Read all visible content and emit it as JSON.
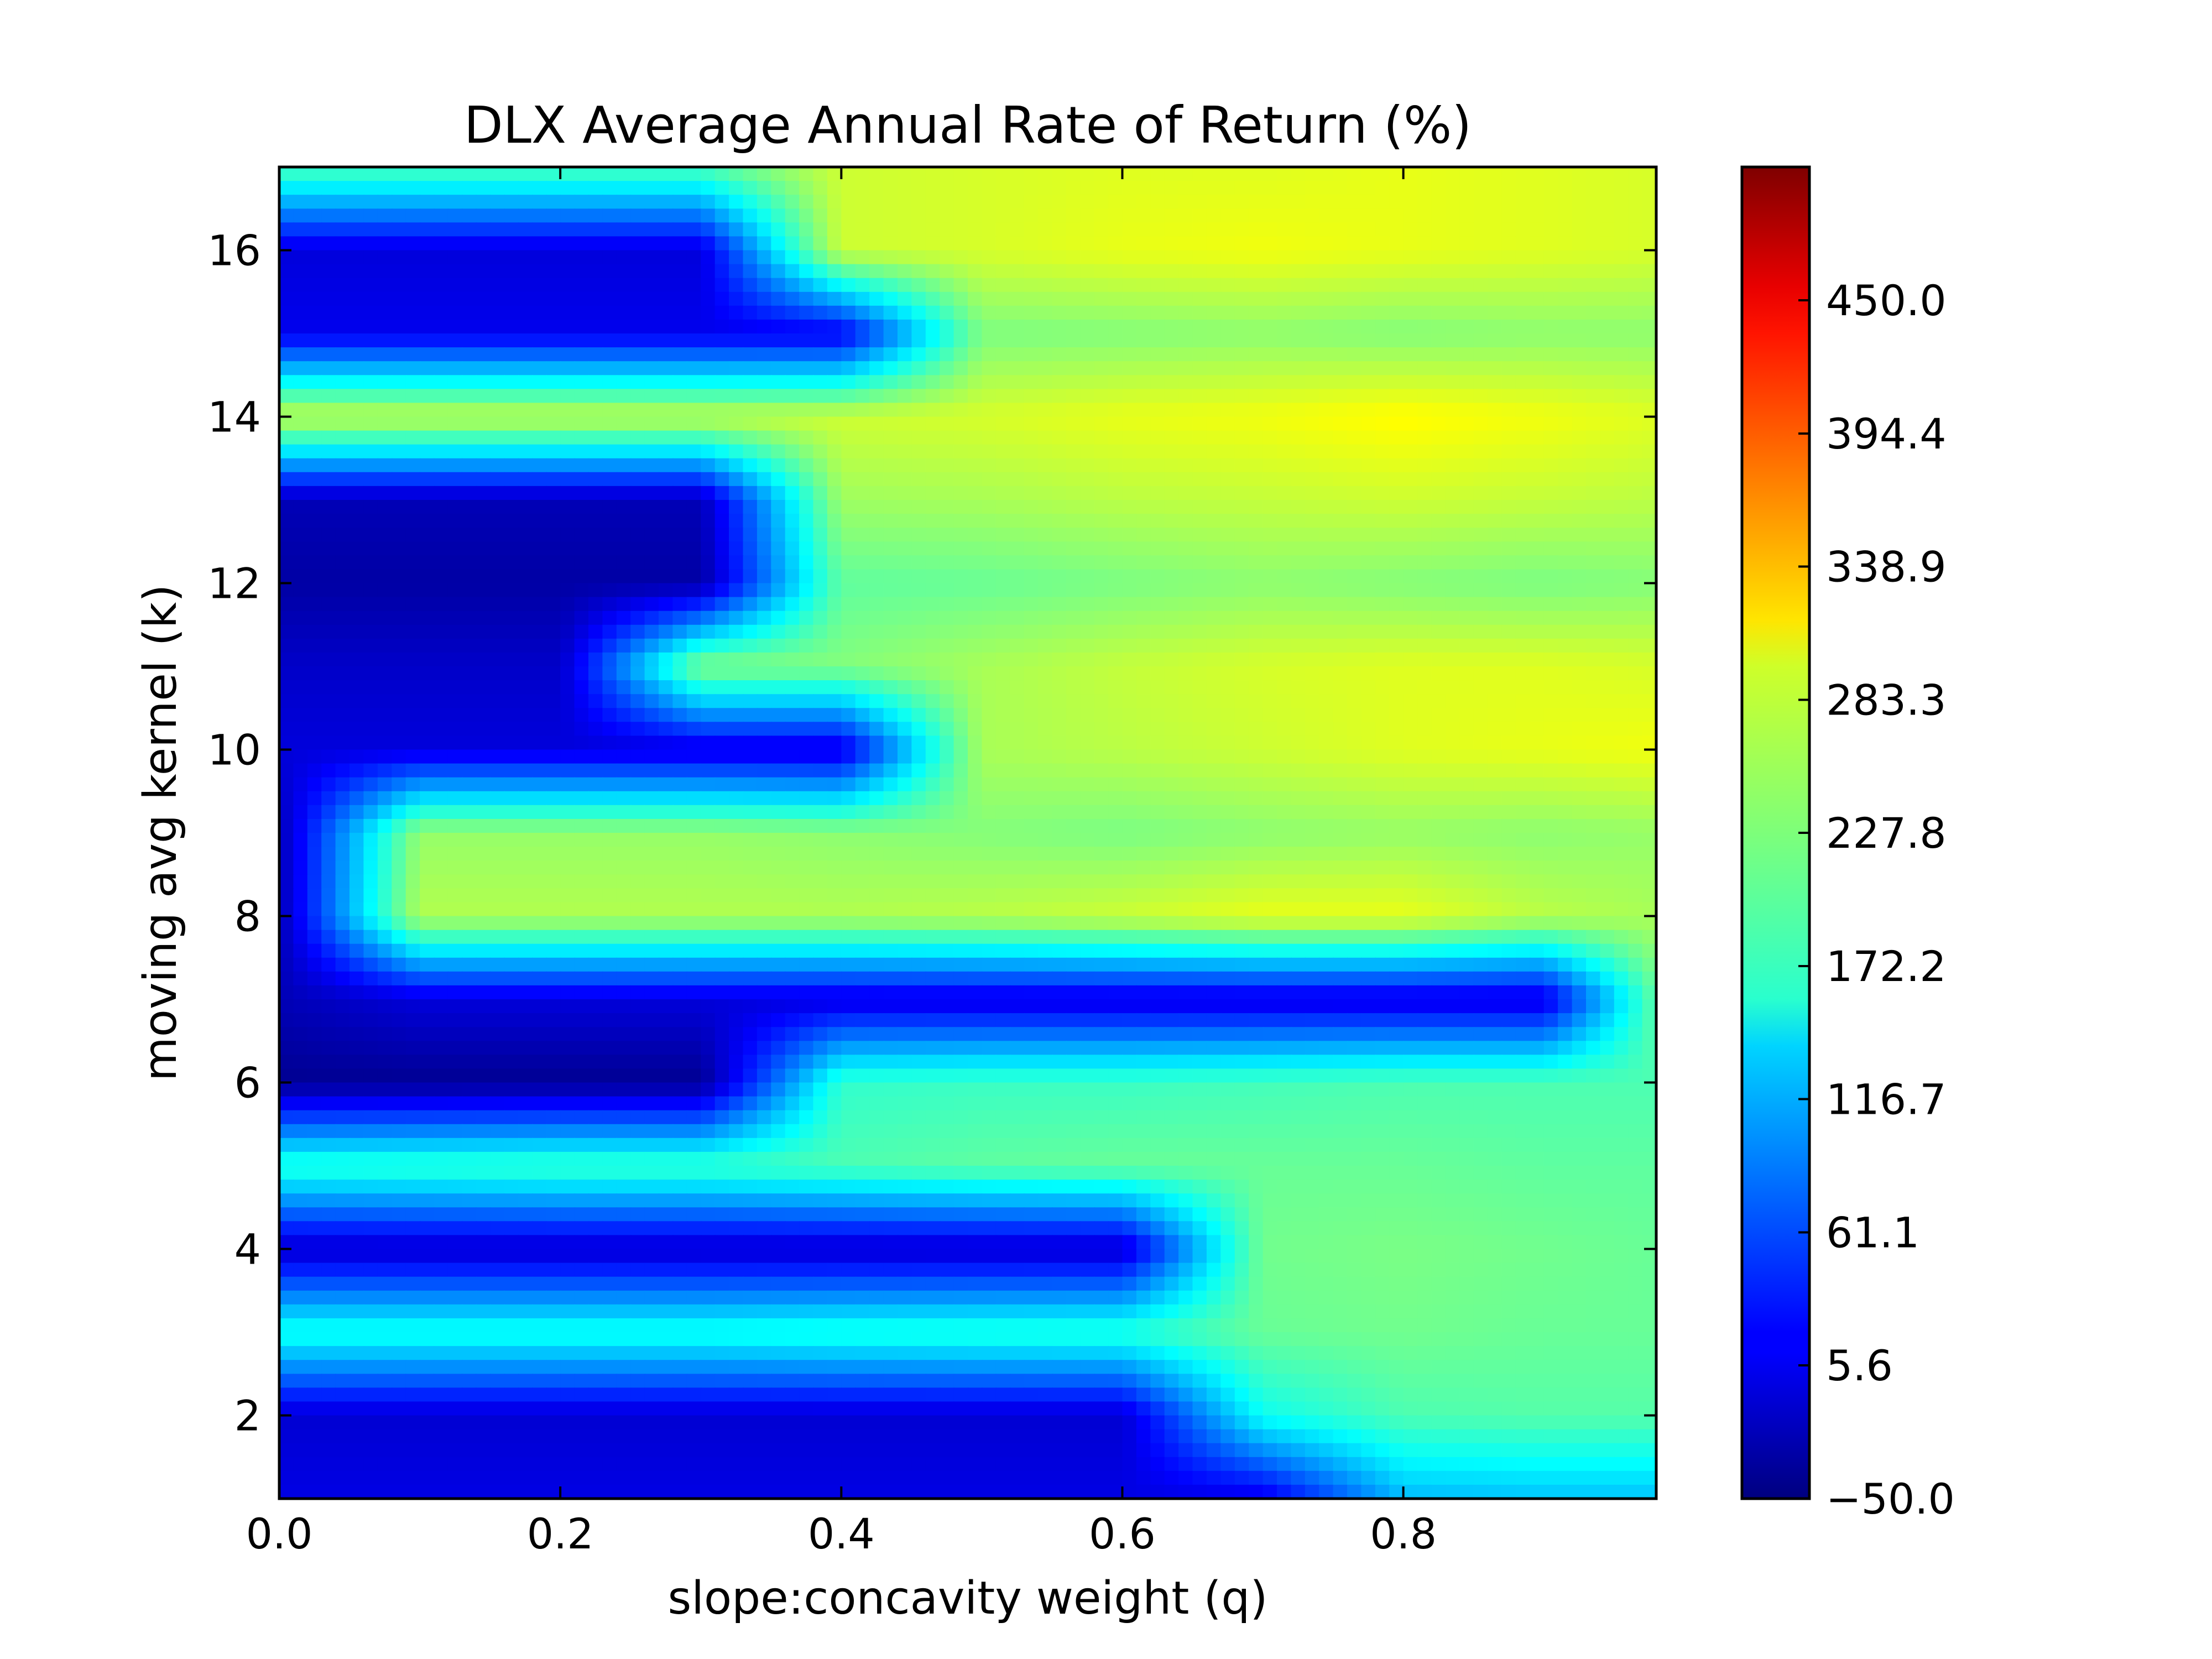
{
  "chart_data": {
    "type": "heatmap",
    "title": "DLX Average Annual Rate of Return (%)",
    "xlabel": "slope:concavity weight (q)",
    "ylabel": "moving avg kernel (k)",
    "xlim": [
      0.0,
      0.98
    ],
    "ylim": [
      1,
      17
    ],
    "x_ticks": [
      0.0,
      0.2,
      0.4,
      0.6,
      0.8
    ],
    "x_tick_labels": [
      "0.0",
      "0.2",
      "0.4",
      "0.6",
      "0.8"
    ],
    "y_ticks": [
      2,
      4,
      6,
      8,
      10,
      12,
      14,
      16
    ],
    "y_tick_labels": [
      "2",
      "4",
      "6",
      "8",
      "10",
      "12",
      "14",
      "16"
    ],
    "colorbar": {
      "colormap": "jet",
      "range": [
        -50.0,
        505.6
      ],
      "tick_values": [
        -50.0,
        5.6,
        61.1,
        116.7,
        172.2,
        227.8,
        283.3,
        338.9,
        394.4,
        450.0
      ],
      "tick_labels": [
        "−50.0",
        "5.6",
        "61.1",
        "116.7",
        "172.2",
        "227.8",
        "283.3",
        "338.9",
        "394.4",
        "450.0"
      ]
    },
    "q_values": [
      0.0,
      0.1,
      0.2,
      0.3,
      0.4,
      0.5,
      0.6,
      0.7,
      0.8,
      0.9,
      0.98
    ],
    "k_values": [
      1,
      2,
      3,
      4,
      5,
      6,
      7,
      8,
      9,
      10,
      11,
      12,
      13,
      14,
      15,
      16,
      17
    ],
    "z_rows": [
      [
        5,
        5,
        5,
        5,
        5,
        5,
        5,
        5,
        120,
        125,
        125
      ],
      [
        -5,
        -5,
        -5,
        -5,
        -5,
        -5,
        -5,
        165,
        200,
        205,
        205
      ],
      [
        170,
        170,
        170,
        170,
        175,
        178,
        180,
        215,
        220,
        215,
        215
      ],
      [
        -10,
        -10,
        -10,
        -10,
        -10,
        -10,
        -10,
        220,
        225,
        220,
        215
      ],
      [
        180,
        185,
        190,
        190,
        200,
        210,
        215,
        215,
        215,
        210,
        210
      ],
      [
        -40,
        -40,
        -40,
        -40,
        185,
        190,
        190,
        195,
        200,
        200,
        200
      ],
      [
        -20,
        0,
        0,
        0,
        0,
        0,
        0,
        0,
        0,
        0,
        210
      ],
      [
        -20,
        255,
        255,
        255,
        255,
        260,
        270,
        285,
        285,
        260,
        250
      ],
      [
        -20,
        240,
        240,
        240,
        235,
        230,
        225,
        235,
        240,
        235,
        240
      ],
      [
        0,
        0,
        0,
        0,
        0,
        250,
        260,
        270,
        280,
        285,
        290
      ],
      [
        -10,
        -10,
        -10,
        230,
        230,
        250,
        265,
        275,
        280,
        280,
        275
      ],
      [
        -30,
        -30,
        -30,
        -30,
        210,
        215,
        225,
        235,
        230,
        225,
        230
      ],
      [
        -20,
        -20,
        -20,
        -20,
        245,
        250,
        260,
        265,
        270,
        265,
        260
      ],
      [
        265,
        265,
        265,
        265,
        270,
        275,
        285,
        290,
        300,
        290,
        280
      ],
      [
        10,
        10,
        10,
        10,
        10,
        225,
        230,
        235,
        230,
        235,
        235
      ],
      [
        0,
        0,
        0,
        0,
        270,
        275,
        285,
        290,
        285,
        280,
        275
      ],
      [
        200,
        200,
        200,
        200,
        270,
        275,
        280,
        280,
        285,
        280,
        275
      ]
    ]
  }
}
